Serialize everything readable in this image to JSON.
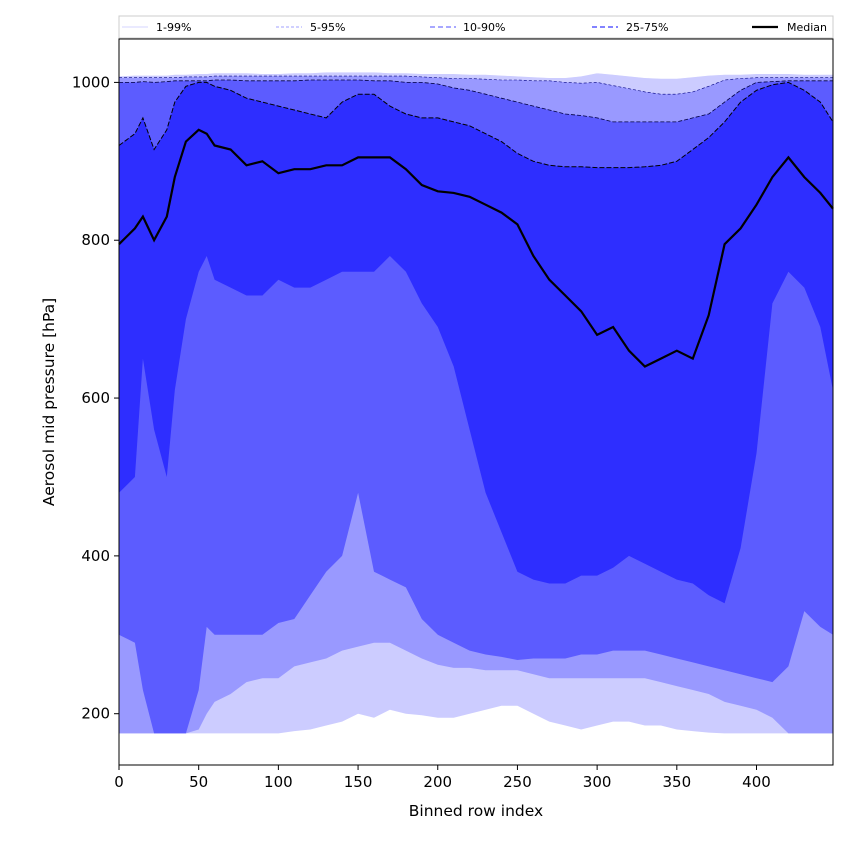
{
  "chart_data": {
    "type": "area",
    "xlabel": "Binned row index",
    "ylabel": "Aerosol mid pressure [hPa]",
    "xlim": [
      0,
      448
    ],
    "ylim": [
      135,
      1055
    ],
    "y_inverted": false,
    "xticks": [
      0,
      50,
      100,
      150,
      200,
      250,
      300,
      350,
      400
    ],
    "yticks": [
      200,
      400,
      600,
      800,
      1000
    ],
    "grid": false,
    "legend_position": "top, above plot, single row",
    "legend": [
      {
        "label": "1-99%",
        "style": "thin-solid",
        "color": "#d6d6ff"
      },
      {
        "label": "5-95%",
        "style": "thin-dashed",
        "color": "#a0a0ff"
      },
      {
        "label": "10-90%",
        "style": "dashed",
        "color": "#8c8cff"
      },
      {
        "label": "25-75%",
        "style": "dashed",
        "color": "#5a5aff"
      },
      {
        "label": "Median",
        "style": "solid",
        "color": "#000000"
      }
    ],
    "band_colors": {
      "p1_p99": "#ccccff",
      "p5_p95": "#9999ff",
      "p10_p90": "#5c5cff",
      "p25_p75": "#2e2eff"
    },
    "x": [
      0,
      10,
      15,
      22,
      30,
      35,
      42,
      50,
      55,
      60,
      70,
      80,
      90,
      100,
      110,
      120,
      130,
      140,
      150,
      160,
      170,
      180,
      190,
      200,
      210,
      220,
      230,
      240,
      250,
      260,
      270,
      280,
      290,
      300,
      310,
      320,
      330,
      340,
      350,
      360,
      370,
      380,
      390,
      400,
      410,
      420,
      430,
      440,
      448
    ],
    "series": [
      {
        "name": "1%",
        "values": [
          175,
          175,
          175,
          175,
          175,
          175,
          175,
          175,
          175,
          175,
          175,
          175,
          175,
          175,
          178,
          180,
          185,
          190,
          200,
          195,
          205,
          200,
          198,
          195,
          195,
          200,
          205,
          210,
          210,
          200,
          190,
          185,
          180,
          185,
          190,
          190,
          185,
          185,
          180,
          178,
          176,
          175,
          175,
          175,
          175,
          175,
          175,
          175,
          175
        ]
      },
      {
        "name": "5%",
        "values": [
          175,
          175,
          175,
          175,
          175,
          175,
          175,
          180,
          200,
          215,
          225,
          240,
          245,
          245,
          260,
          265,
          270,
          280,
          285,
          290,
          290,
          280,
          270,
          262,
          258,
          258,
          255,
          255,
          255,
          250,
          245,
          245,
          245,
          245,
          245,
          245,
          245,
          240,
          235,
          230,
          225,
          215,
          210,
          205,
          195,
          175,
          175,
          175,
          175
        ]
      },
      {
        "name": "10%",
        "values": [
          300,
          290,
          230,
          175,
          175,
          175,
          175,
          230,
          310,
          300,
          300,
          300,
          300,
          315,
          320,
          350,
          380,
          400,
          480,
          380,
          370,
          360,
          320,
          300,
          290,
          280,
          275,
          272,
          268,
          270,
          270,
          270,
          275,
          275,
          280,
          280,
          280,
          275,
          270,
          265,
          260,
          255,
          250,
          245,
          240,
          260,
          330,
          310,
          300
        ]
      },
      {
        "name": "25%",
        "values": [
          480,
          500,
          650,
          560,
          500,
          610,
          700,
          760,
          780,
          750,
          740,
          730,
          730,
          750,
          740,
          740,
          750,
          760,
          760,
          760,
          780,
          760,
          720,
          690,
          640,
          560,
          480,
          430,
          380,
          370,
          365,
          365,
          375,
          375,
          385,
          400,
          390,
          380,
          370,
          365,
          350,
          340,
          410,
          530,
          720,
          760,
          740,
          690,
          610
        ]
      },
      {
        "name": "Median",
        "values": [
          795,
          815,
          830,
          800,
          830,
          880,
          925,
          940,
          935,
          920,
          915,
          895,
          900,
          885,
          890,
          890,
          895,
          895,
          905,
          905,
          905,
          890,
          870,
          862,
          860,
          855,
          845,
          835,
          820,
          780,
          750,
          730,
          710,
          680,
          690,
          660,
          640,
          650,
          660,
          650,
          705,
          795,
          815,
          845,
          880,
          905,
          880,
          860,
          840
        ]
      },
      {
        "name": "75%",
        "values": [
          920,
          935,
          955,
          915,
          940,
          975,
          995,
          1000,
          1000,
          995,
          990,
          980,
          975,
          970,
          965,
          960,
          955,
          975,
          985,
          985,
          970,
          960,
          955,
          955,
          950,
          945,
          935,
          925,
          910,
          900,
          895,
          893,
          893,
          892,
          892,
          892,
          893,
          895,
          900,
          915,
          930,
          950,
          975,
          990,
          997,
          1000,
          990,
          975,
          950
        ]
      },
      {
        "name": "90%",
        "values": [
          1000,
          1000,
          1001,
          1000,
          1001,
          1002,
          1002,
          1002,
          1002,
          1003,
          1003,
          1002,
          1002,
          1002,
          1002,
          1003,
          1003,
          1003,
          1003,
          1002,
          1002,
          1000,
          1000,
          998,
          993,
          990,
          985,
          980,
          975,
          970,
          965,
          960,
          958,
          955,
          950,
          950,
          950,
          950,
          950,
          955,
          960,
          975,
          990,
          1000,
          1001,
          1002,
          1002,
          1002,
          1002
        ]
      },
      {
        "name": "95%",
        "values": [
          1006,
          1006,
          1006,
          1006,
          1006,
          1006,
          1007,
          1007,
          1007,
          1008,
          1008,
          1008,
          1008,
          1008,
          1008,
          1008,
          1008,
          1008,
          1008,
          1008,
          1008,
          1008,
          1007,
          1006,
          1005,
          1005,
          1004,
          1003,
          1003,
          1002,
          1002,
          1000,
          999,
          1000,
          996,
          992,
          988,
          985,
          985,
          988,
          995,
          1003,
          1005,
          1006,
          1006,
          1006,
          1006,
          1006,
          1006
        ]
      },
      {
        "name": "99%",
        "values": [
          1008,
          1009,
          1009,
          1009,
          1009,
          1010,
          1010,
          1011,
          1011,
          1012,
          1012,
          1012,
          1011,
          1011,
          1012,
          1012,
          1013,
          1013,
          1013,
          1013,
          1012,
          1012,
          1011,
          1011,
          1011,
          1010,
          1010,
          1009,
          1008,
          1007,
          1006,
          1006,
          1008,
          1012,
          1010,
          1008,
          1006,
          1005,
          1005,
          1007,
          1009,
          1010,
          1010,
          1011,
          1011,
          1011,
          1010,
          1010,
          1010
        ]
      }
    ]
  }
}
